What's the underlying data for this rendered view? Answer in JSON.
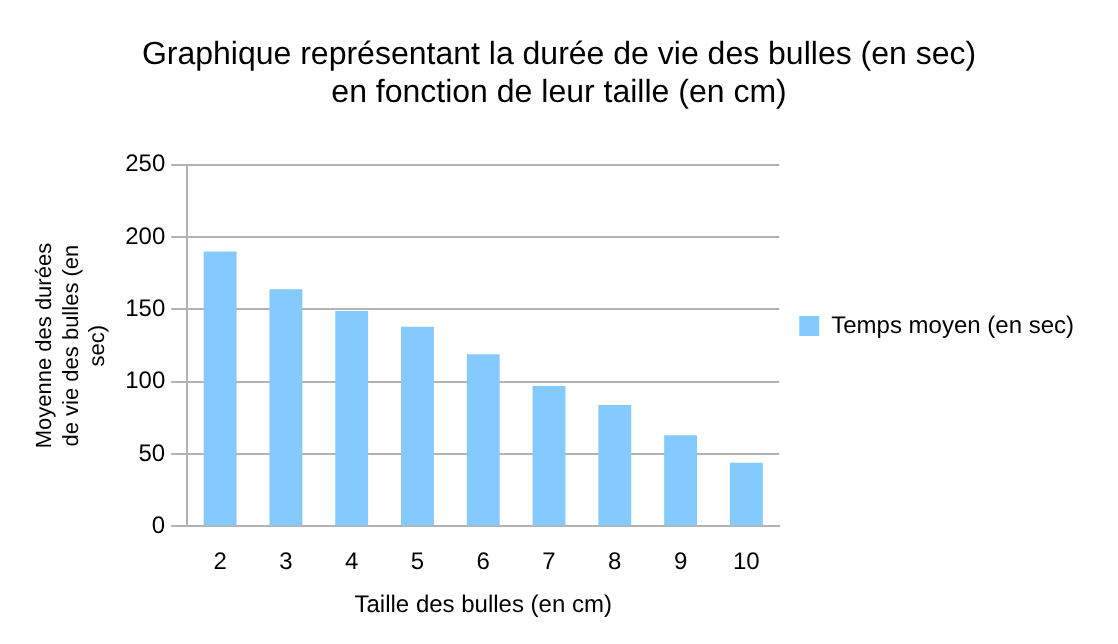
{
  "chart_data": {
    "type": "bar",
    "title": "Graphique représentant la durée de vie des bulles (en sec) en fonction de leur taille (en cm)",
    "xlabel": "Taille des bulles (en cm)",
    "ylabel": "Moyenne des durées de vie des bulles (en sec)",
    "categories": [
      "2",
      "3",
      "4",
      "5",
      "6",
      "7",
      "8",
      "9",
      "10"
    ],
    "series": [
      {
        "name": "Temps moyen (en sec)",
        "color": "#84caff",
        "values": [
          190,
          164,
          149,
          138,
          119,
          97,
          84,
          63,
          44
        ]
      }
    ],
    "ylim": [
      0,
      250
    ],
    "yticks": [
      0,
      50,
      100,
      150,
      200,
      250
    ],
    "grid": "y",
    "legend": "right"
  }
}
